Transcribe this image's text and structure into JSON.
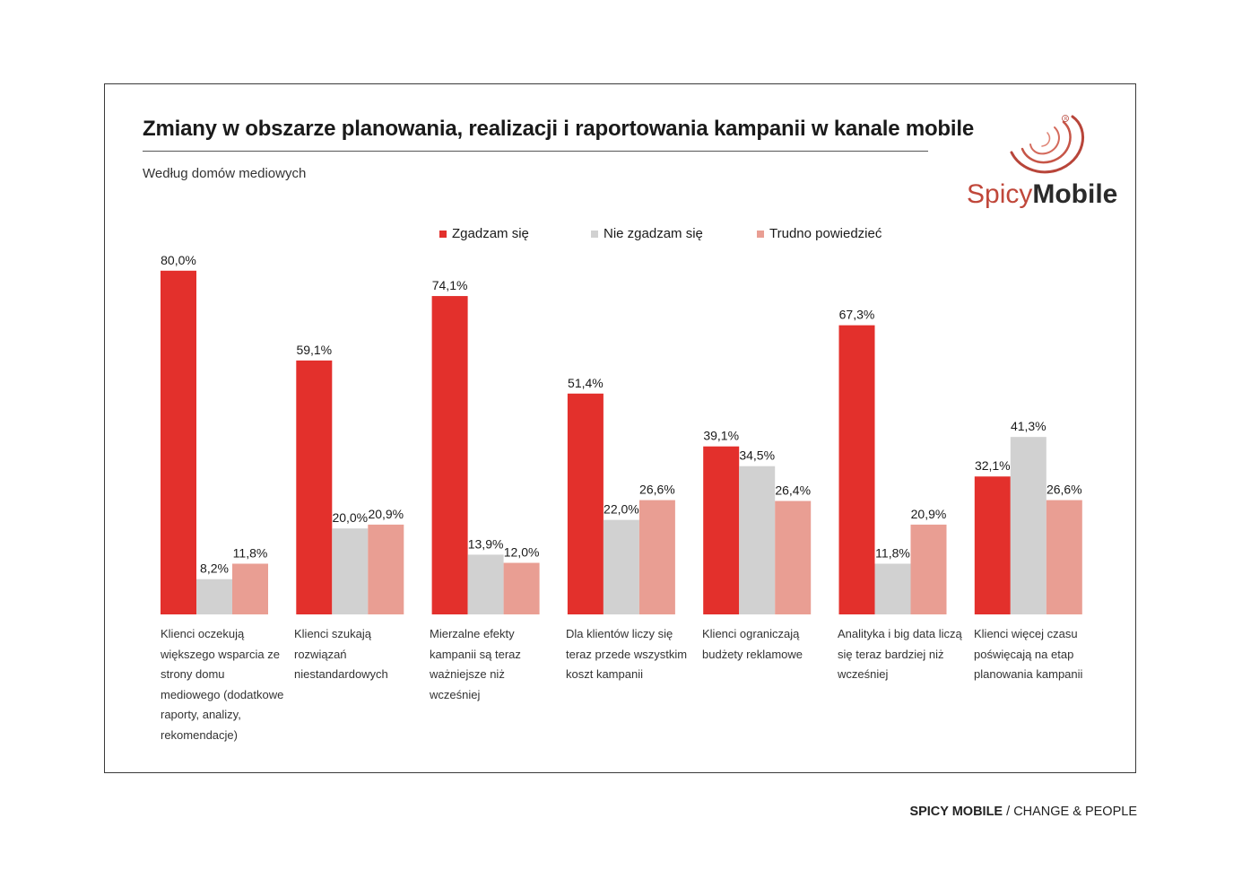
{
  "title": "Zmiany w obszarze planowania, realizacji i raportowania kampanii w kanale mobile",
  "subtitle": "Według domów mediowych",
  "logo": {
    "spicy": "Spicy",
    "mobile": "Mobile"
  },
  "footer": {
    "brand": "SPICY MOBILE",
    "tagline": " / CHANGE & PEOPLE"
  },
  "colors": {
    "agree": "#e3302c",
    "disagree": "#d1d1d1",
    "unsure": "#e99e93",
    "logo_accent": "#c0473a"
  },
  "chart_data": {
    "type": "bar",
    "title": "Zmiany w obszarze planowania, realizacji i raportowania kampanii w kanale mobile",
    "subtitle": "Według domów mediowych",
    "xlabel": "",
    "ylabel": "",
    "ylim": [
      0,
      100
    ],
    "legend_position": "top-center",
    "grid": false,
    "categories": [
      "Klienci oczekują większego wsparcia ze strony domu mediowego (dodatkowe raporty, analizy, rekomendacje)",
      "Klienci szukają rozwiązań niestandardowych",
      "Mierzalne efekty kampanii są teraz ważniejsze niż wcześniej",
      "Dla klientów liczy się teraz przede wszystkim koszt kampanii",
      "Klienci ograniczają budżety reklamowe",
      "Analityka i big data liczą się teraz bardziej niż wcześniej",
      "Klienci więcej czasu poświęcają na etap planowania kampanii"
    ],
    "series": [
      {
        "name": "Zgadzam się",
        "color": "#e3302c",
        "values": [
          80.0,
          59.1,
          74.1,
          51.4,
          39.1,
          67.3,
          32.1
        ],
        "labels": [
          "80,0%",
          "59,1%",
          "74,1%",
          "51,4%",
          "39,1%",
          "67,3%",
          "32,1%"
        ]
      },
      {
        "name": "Nie zgadzam się",
        "color": "#d1d1d1",
        "values": [
          8.2,
          20.0,
          13.9,
          22.0,
          34.5,
          11.8,
          41.3
        ],
        "labels": [
          "8,2%",
          "20,0%",
          "13,9%",
          "22,0%",
          "34,5%",
          "11,8%",
          "41,3%"
        ]
      },
      {
        "name": "Trudno powiedzieć",
        "color": "#e99e93",
        "values": [
          11.8,
          20.9,
          12.0,
          26.6,
          26.4,
          20.9,
          26.6
        ],
        "labels": [
          "11,8%",
          "20,9%",
          "12,0%",
          "26,6%",
          "26,4%",
          "20,9%",
          "26,6%"
        ]
      }
    ]
  }
}
